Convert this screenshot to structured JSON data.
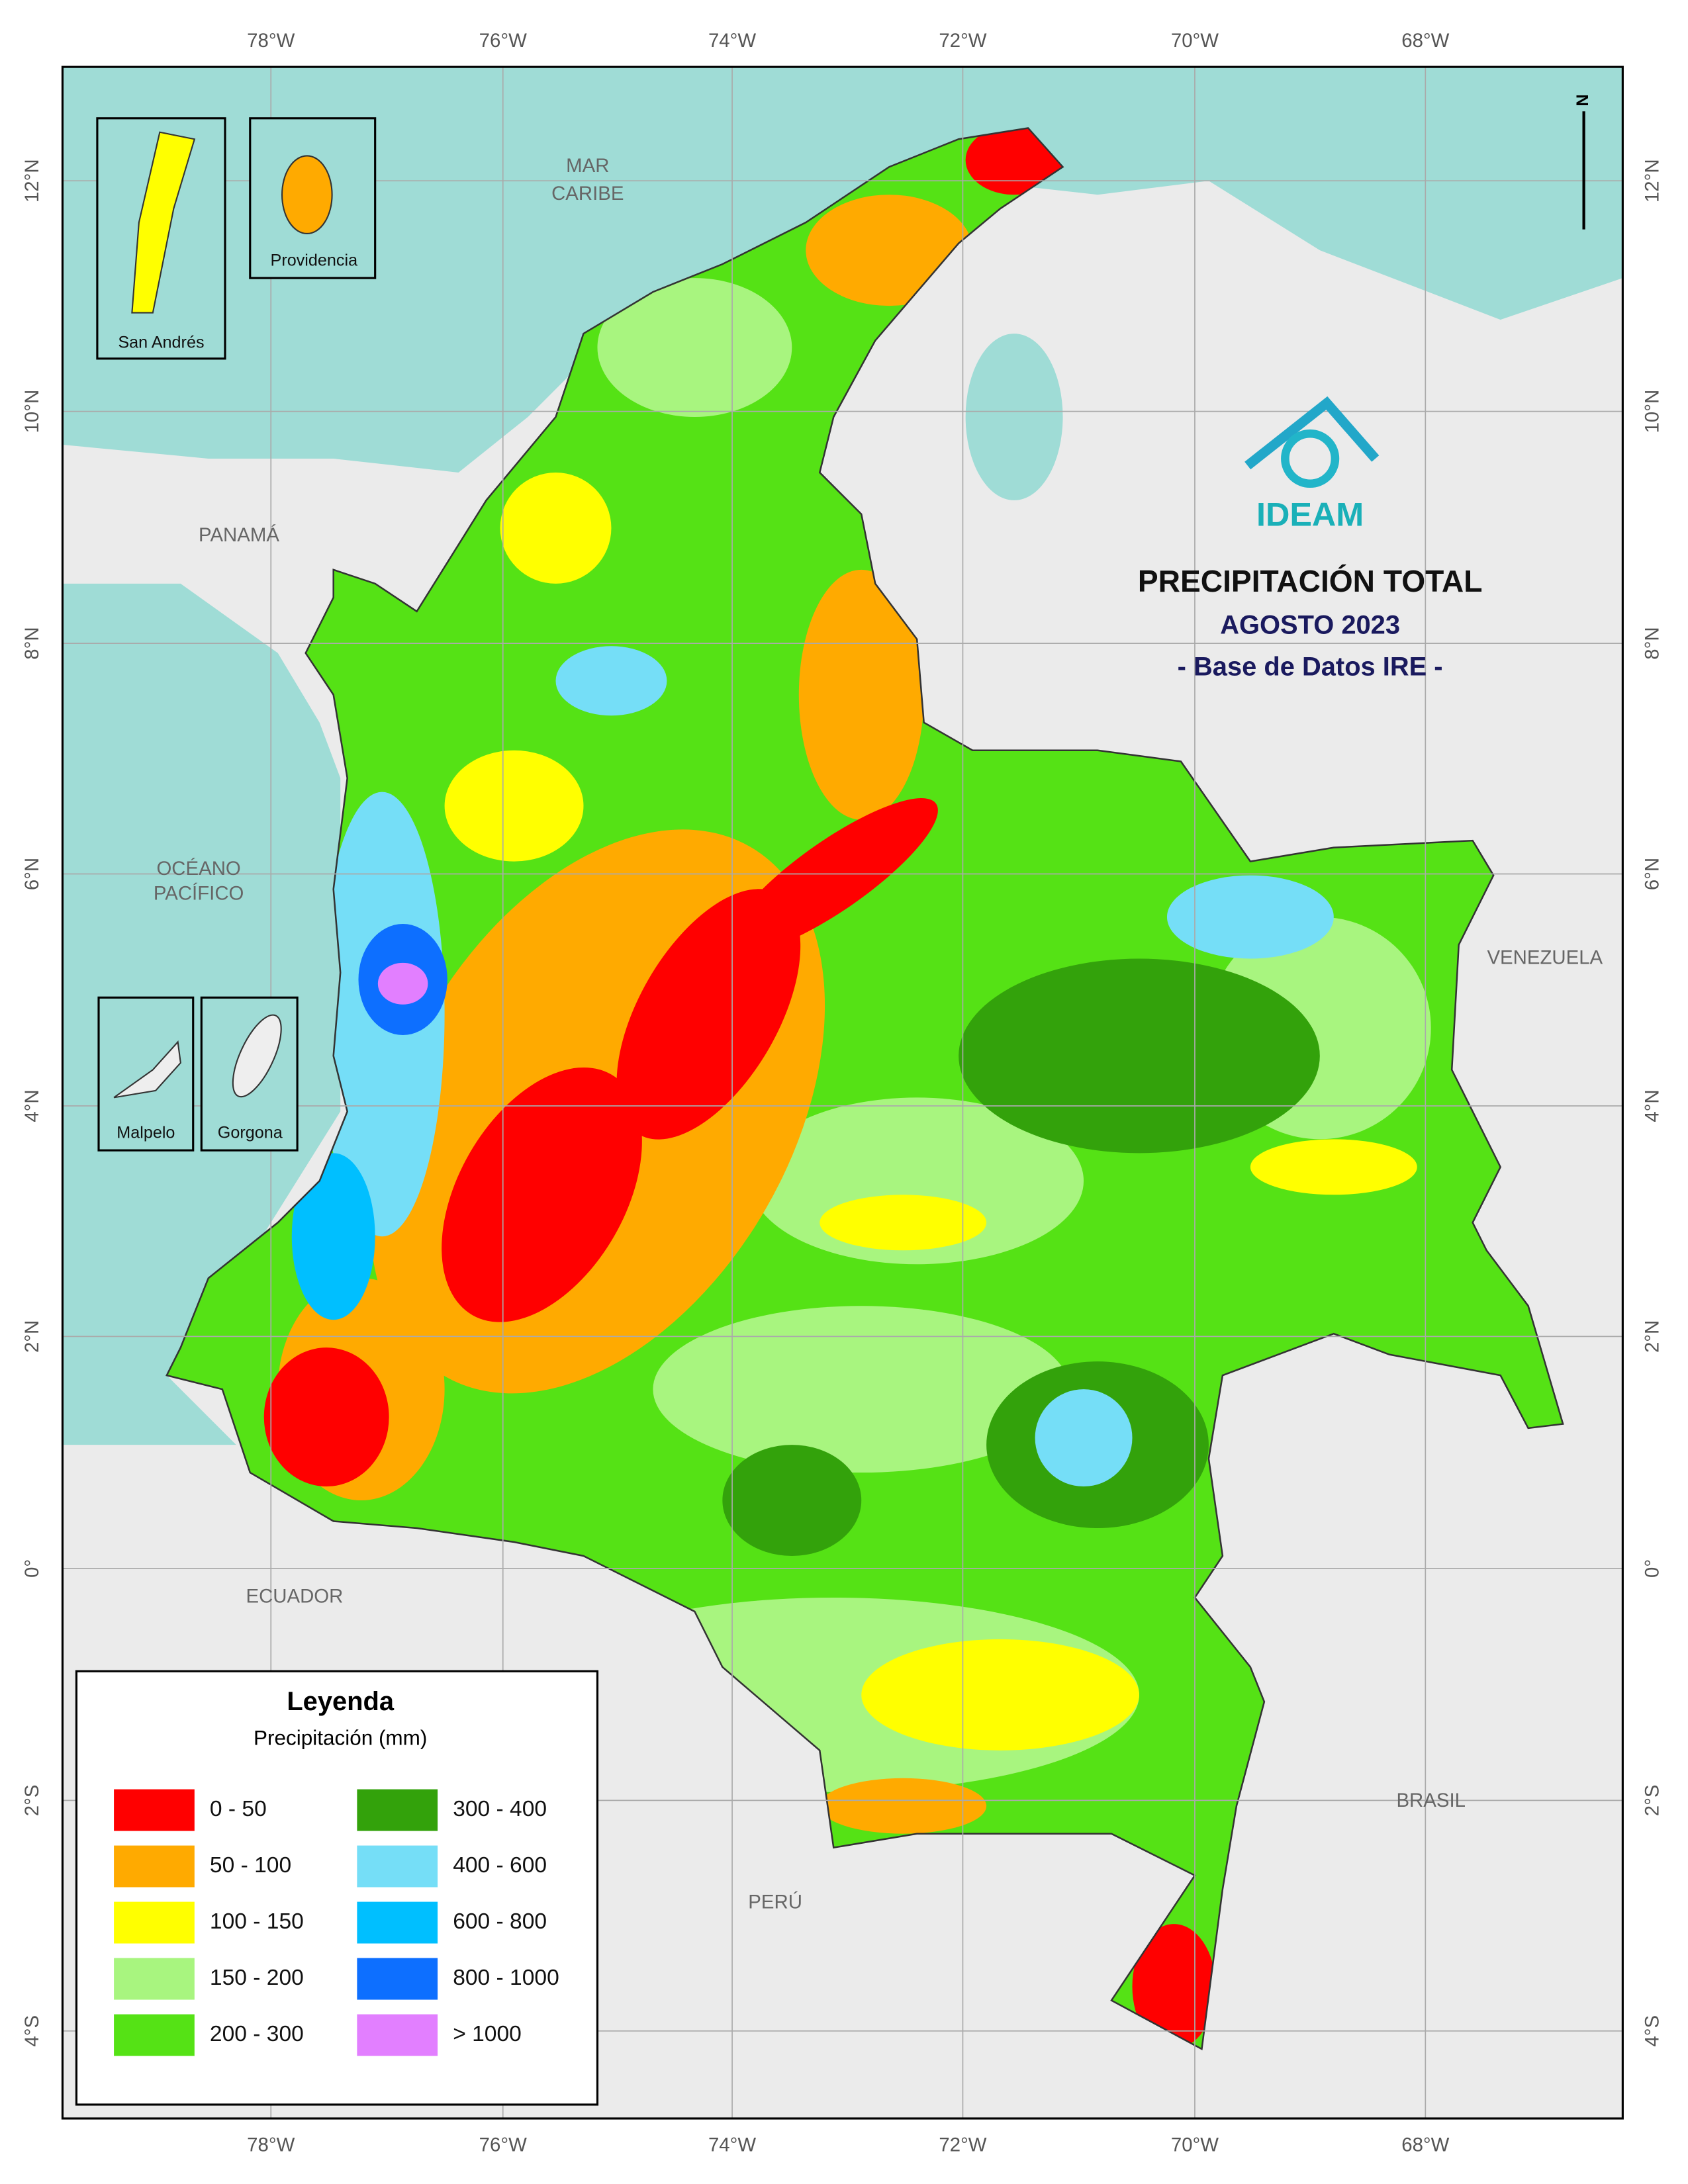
{
  "map": {
    "title": "PRECIPITACIÓN TOTAL",
    "subtitle": "AGOSTO 2023",
    "source": "- Base de Datos IRE -",
    "logo": "IDEAM",
    "north": "N",
    "lon_labels": [
      "78°W",
      "76°W",
      "74°W",
      "72°W",
      "70°W",
      "68°W"
    ],
    "lat_labels": [
      "12°N",
      "10°N",
      "8°N",
      "6°N",
      "4°N",
      "2°N",
      "0°",
      "2°S",
      "4°S"
    ],
    "places": {
      "mar": "MAR",
      "caribe": "CARIBE",
      "panama": "PANAMÁ",
      "oceano": "OCÉANO",
      "pacifico": "PACÍFICO",
      "venezuela": "VENEZUELA",
      "ecuador": "ECUADOR",
      "peru": "PERÚ",
      "brasil": "BRASIL"
    },
    "insets": [
      "San Andrés",
      "Providencia",
      "Malpelo",
      "Gorgona"
    ],
    "legend": {
      "title": "Leyenda",
      "subtitle": "Precipitación (mm)",
      "items": [
        {
          "label": "0 - 50",
          "color": "#ff0000"
        },
        {
          "label": "50 - 100",
          "color": "#ffaa00"
        },
        {
          "label": "100 - 150",
          "color": "#ffff00"
        },
        {
          "label": "150 - 200",
          "color": "#a8f57f"
        },
        {
          "label": "200 - 300",
          "color": "#55e215"
        },
        {
          "label": "300 - 400",
          "color": "#33a20b"
        },
        {
          "label": "400 - 600",
          "color": "#75def7"
        },
        {
          "label": "600 - 800",
          "color": "#00bfff"
        },
        {
          "label": "800 - 1000",
          "color": "#0d6fff"
        },
        {
          "label": "> 1000",
          "color": "#e27fff"
        }
      ]
    }
  }
}
